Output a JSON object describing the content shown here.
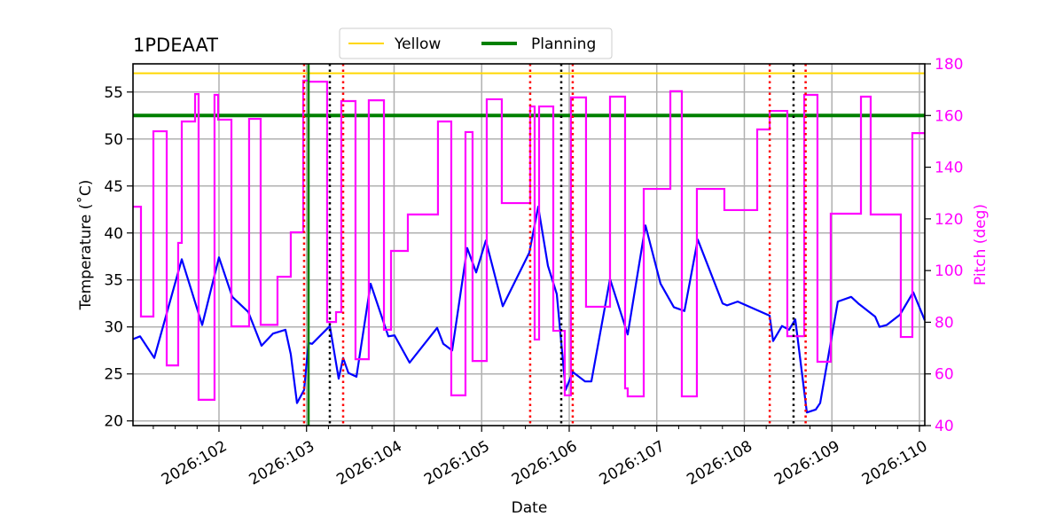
{
  "chart_data": {
    "type": "line",
    "title": "1PDEAAT",
    "xlabel": "Date",
    "ylabel": "Temperature ($^\\circ$C)",
    "ylabel_display": "Temperature (˚C)",
    "y2label": "Pitch (deg)",
    "xlim": [
      101.018,
      110.061
    ],
    "ylim": [
      19.5,
      58.0
    ],
    "y2lim": [
      40,
      180
    ],
    "grid": true,
    "legend_placement": "top-center-outside",
    "x_ticks": [
      {
        "value": 102,
        "label": "2026:102"
      },
      {
        "value": 103,
        "label": "2026:103"
      },
      {
        "value": 104,
        "label": "2026:104"
      },
      {
        "value": 105,
        "label": "2026:105"
      },
      {
        "value": 106,
        "label": "2026:106"
      },
      {
        "value": 107,
        "label": "2026:107"
      },
      {
        "value": 108,
        "label": "2026:108"
      },
      {
        "value": 109,
        "label": "2026:109"
      },
      {
        "value": 110,
        "label": "2026:110"
      }
    ],
    "y_ticks": [
      20,
      25,
      30,
      35,
      40,
      45,
      50,
      55
    ],
    "y2_ticks": [
      40,
      60,
      80,
      100,
      120,
      140,
      160,
      180
    ],
    "legend": [
      {
        "name": "Yellow",
        "color": "#ffd700"
      },
      {
        "name": "Planning",
        "color": "#008000"
      }
    ],
    "hlines": [
      {
        "name": "Yellow",
        "y": 57.0,
        "color": "#ffd700"
      },
      {
        "name": "Planning",
        "y": 52.5,
        "color": "#008000"
      }
    ],
    "vlines_red_dotted": [
      102.972,
      103.418,
      105.554,
      106.04,
      108.29,
      108.7
    ],
    "vlines_black_dotted": [
      103.266,
      105.909,
      108.562
    ],
    "vline_green": 103.023,
    "colors": {
      "temperature": "#0000ff",
      "pitch": "#ff00ff",
      "pitch_axis": "#ff00ff",
      "grid": "#b0b0b0",
      "red": "#ff0000"
    },
    "temperature": [
      [
        101.018,
        28.7
      ],
      [
        101.099,
        29.0
      ],
      [
        101.261,
        26.7
      ],
      [
        101.575,
        37.2
      ],
      [
        101.808,
        30.2
      ],
      [
        102.0,
        37.4
      ],
      [
        102.152,
        33.2
      ],
      [
        102.334,
        31.6
      ],
      [
        102.486,
        28.0
      ],
      [
        102.618,
        29.3
      ],
      [
        102.759,
        29.7
      ],
      [
        102.82,
        27.1
      ],
      [
        102.891,
        21.9
      ],
      [
        102.972,
        23.3
      ],
      [
        103.023,
        28.3
      ],
      [
        103.063,
        28.2
      ],
      [
        103.266,
        30.1
      ],
      [
        103.367,
        24.5
      ],
      [
        103.418,
        26.7
      ],
      [
        103.478,
        25.1
      ],
      [
        103.57,
        24.7
      ],
      [
        103.732,
        34.6
      ],
      [
        103.934,
        29.0
      ],
      [
        104.005,
        29.1
      ],
      [
        104.177,
        26.2
      ],
      [
        104.491,
        29.9
      ],
      [
        104.562,
        28.2
      ],
      [
        104.663,
        27.5
      ],
      [
        104.835,
        38.4
      ],
      [
        104.937,
        35.8
      ],
      [
        105.048,
        39.2
      ],
      [
        105.241,
        32.2
      ],
      [
        105.544,
        37.9
      ],
      [
        105.646,
        42.8
      ],
      [
        105.757,
        36.5
      ],
      [
        105.858,
        33.5
      ],
      [
        105.959,
        23.3
      ],
      [
        106.041,
        25.2
      ],
      [
        106.182,
        24.2
      ],
      [
        106.253,
        24.2
      ],
      [
        106.466,
        35.1
      ],
      [
        106.668,
        29.2
      ],
      [
        106.871,
        40.8
      ],
      [
        107.043,
        34.6
      ],
      [
        107.195,
        32.1
      ],
      [
        107.316,
        31.7
      ],
      [
        107.468,
        39.3
      ],
      [
        107.752,
        32.5
      ],
      [
        107.803,
        32.3
      ],
      [
        107.924,
        32.7
      ],
      [
        108.289,
        31.2
      ],
      [
        108.329,
        28.5
      ],
      [
        108.43,
        30.1
      ],
      [
        108.511,
        29.7
      ],
      [
        108.582,
        30.8
      ],
      [
        108.714,
        20.9
      ],
      [
        108.815,
        21.2
      ],
      [
        108.866,
        21.9
      ],
      [
        109.068,
        32.7
      ],
      [
        109.22,
        33.2
      ],
      [
        109.301,
        32.5
      ],
      [
        109.342,
        32.2
      ],
      [
        109.494,
        31.1
      ],
      [
        109.544,
        30.0
      ],
      [
        109.625,
        30.2
      ],
      [
        109.777,
        31.3
      ],
      [
        109.929,
        33.7
      ],
      [
        110.061,
        30.7
      ]
    ],
    "pitch_steps": [
      [
        101.018,
        124.7
      ],
      [
        101.109,
        82.2
      ],
      [
        101.251,
        153.9
      ],
      [
        101.403,
        63.3
      ],
      [
        101.534,
        110.7
      ],
      [
        101.575,
        157.7
      ],
      [
        101.727,
        168.3
      ],
      [
        101.767,
        50.0
      ],
      [
        101.949,
        168.0
      ],
      [
        101.99,
        158.4
      ],
      [
        102.142,
        78.4
      ],
      [
        102.344,
        158.7
      ],
      [
        102.476,
        79.0
      ],
      [
        102.668,
        97.6
      ],
      [
        102.82,
        114.8
      ],
      [
        102.962,
        173.5
      ],
      [
        103.023,
        173.1
      ],
      [
        103.235,
        80.1
      ],
      [
        103.337,
        83.9
      ],
      [
        103.397,
        165.6
      ],
      [
        103.559,
        65.7
      ],
      [
        103.711,
        165.9
      ],
      [
        103.884,
        77.1
      ],
      [
        103.965,
        107.6
      ],
      [
        104.157,
        121.7
      ],
      [
        104.501,
        157.7
      ],
      [
        104.653,
        51.7
      ],
      [
        104.815,
        153.6
      ],
      [
        104.896,
        65.0
      ],
      [
        105.058,
        166.3
      ],
      [
        105.23,
        126.1
      ],
      [
        105.554,
        163.5
      ],
      [
        105.605,
        73.3
      ],
      [
        105.656,
        163.5
      ],
      [
        105.818,
        76.7
      ],
      [
        105.949,
        51.7
      ],
      [
        106.02,
        167.0
      ],
      [
        106.192,
        86.0
      ],
      [
        106.466,
        167.3
      ],
      [
        106.638,
        54.4
      ],
      [
        106.668,
        51.3
      ],
      [
        106.851,
        131.6
      ],
      [
        107.155,
        169.4
      ],
      [
        107.286,
        51.3
      ],
      [
        107.458,
        131.6
      ],
      [
        107.772,
        123.4
      ],
      [
        108.147,
        154.6
      ],
      [
        108.289,
        161.8
      ],
      [
        108.491,
        74.6
      ],
      [
        108.684,
        168.0
      ],
      [
        108.835,
        64.7
      ],
      [
        108.987,
        122.0
      ],
      [
        109.332,
        167.3
      ],
      [
        109.443,
        121.7
      ],
      [
        109.787,
        74.3
      ],
      [
        109.919,
        153.2
      ],
      [
        110.061,
        153.2
      ]
    ]
  }
}
